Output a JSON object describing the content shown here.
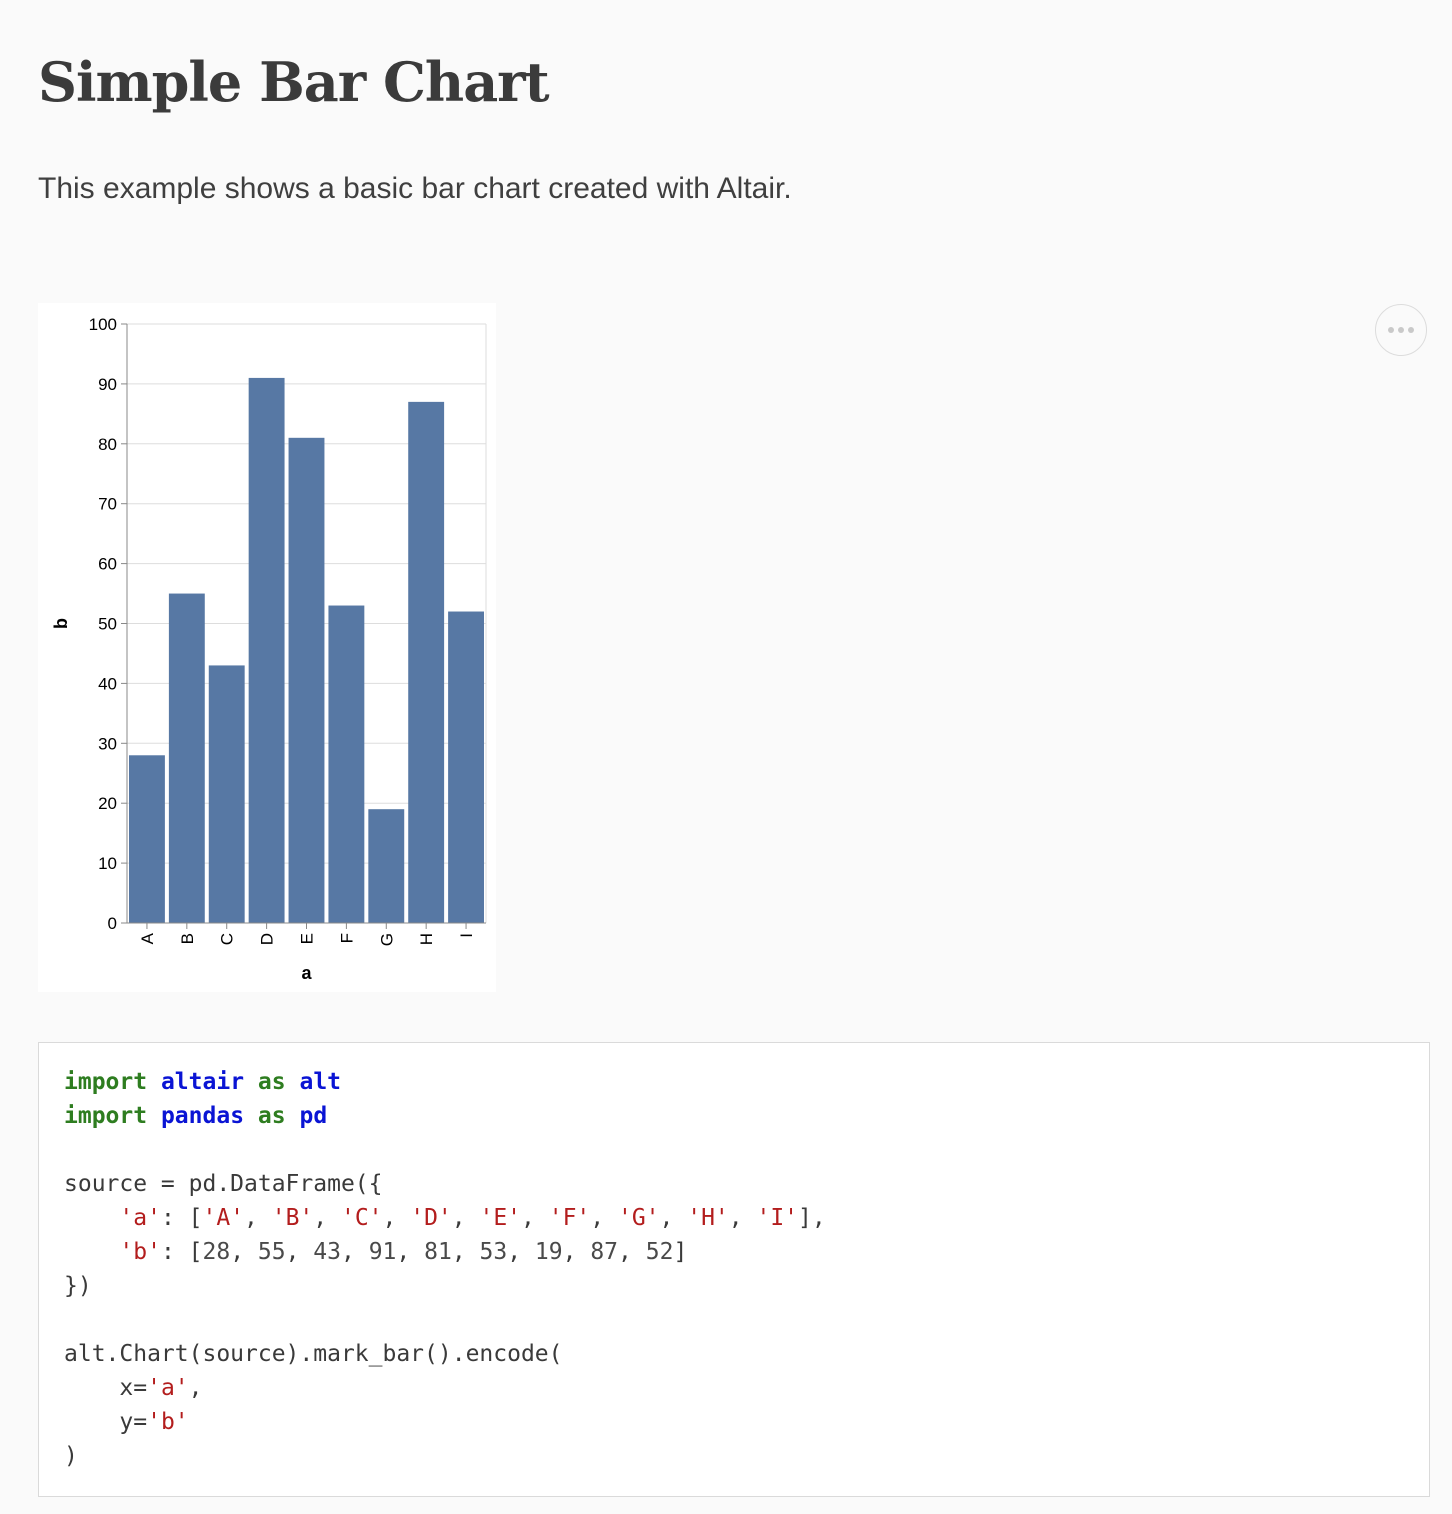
{
  "page": {
    "title": "Simple Bar Chart",
    "description": "This example shows a basic bar chart created with Altair."
  },
  "actions": {
    "more_button_icon": "more-horizontal-icon"
  },
  "chart_data": {
    "type": "bar",
    "categories": [
      "A",
      "B",
      "C",
      "D",
      "E",
      "F",
      "G",
      "H",
      "I"
    ],
    "values": [
      28,
      55,
      43,
      91,
      81,
      53,
      19,
      87,
      52
    ],
    "xlabel": "a",
    "ylabel": "b",
    "ylim": [
      0,
      100
    ],
    "yticks": [
      0,
      10,
      20,
      30,
      40,
      50,
      60,
      70,
      80,
      90,
      100
    ],
    "grid": true,
    "bar_color": "#5778a4"
  },
  "code": {
    "language": "python",
    "lines": [
      [
        {
          "t": "import",
          "c": "kw"
        },
        {
          "t": " ",
          "c": "plain"
        },
        {
          "t": "altair",
          "c": "mod"
        },
        {
          "t": " ",
          "c": "plain"
        },
        {
          "t": "as",
          "c": "kw"
        },
        {
          "t": " ",
          "c": "plain"
        },
        {
          "t": "alt",
          "c": "mod"
        }
      ],
      [
        {
          "t": "import",
          "c": "kw"
        },
        {
          "t": " ",
          "c": "plain"
        },
        {
          "t": "pandas",
          "c": "mod"
        },
        {
          "t": " ",
          "c": "plain"
        },
        {
          "t": "as",
          "c": "kw"
        },
        {
          "t": " ",
          "c": "plain"
        },
        {
          "t": "pd",
          "c": "mod"
        }
      ],
      [],
      [
        {
          "t": "source = pd.DataFrame({",
          "c": "plain"
        }
      ],
      [
        {
          "t": "    ",
          "c": "plain"
        },
        {
          "t": "'a'",
          "c": "str"
        },
        {
          "t": ": [",
          "c": "plain"
        },
        {
          "t": "'A'",
          "c": "str"
        },
        {
          "t": ", ",
          "c": "plain"
        },
        {
          "t": "'B'",
          "c": "str"
        },
        {
          "t": ", ",
          "c": "plain"
        },
        {
          "t": "'C'",
          "c": "str"
        },
        {
          "t": ", ",
          "c": "plain"
        },
        {
          "t": "'D'",
          "c": "str"
        },
        {
          "t": ", ",
          "c": "plain"
        },
        {
          "t": "'E'",
          "c": "str"
        },
        {
          "t": ", ",
          "c": "plain"
        },
        {
          "t": "'F'",
          "c": "str"
        },
        {
          "t": ", ",
          "c": "plain"
        },
        {
          "t": "'G'",
          "c": "str"
        },
        {
          "t": ", ",
          "c": "plain"
        },
        {
          "t": "'H'",
          "c": "str"
        },
        {
          "t": ", ",
          "c": "plain"
        },
        {
          "t": "'I'",
          "c": "str"
        },
        {
          "t": "],",
          "c": "plain"
        }
      ],
      [
        {
          "t": "    ",
          "c": "plain"
        },
        {
          "t": "'b'",
          "c": "str"
        },
        {
          "t": ": [",
          "c": "plain"
        },
        {
          "t": "28",
          "c": "num"
        },
        {
          "t": ", ",
          "c": "plain"
        },
        {
          "t": "55",
          "c": "num"
        },
        {
          "t": ", ",
          "c": "plain"
        },
        {
          "t": "43",
          "c": "num"
        },
        {
          "t": ", ",
          "c": "plain"
        },
        {
          "t": "91",
          "c": "num"
        },
        {
          "t": ", ",
          "c": "plain"
        },
        {
          "t": "81",
          "c": "num"
        },
        {
          "t": ", ",
          "c": "plain"
        },
        {
          "t": "53",
          "c": "num"
        },
        {
          "t": ", ",
          "c": "plain"
        },
        {
          "t": "19",
          "c": "num"
        },
        {
          "t": ", ",
          "c": "plain"
        },
        {
          "t": "87",
          "c": "num"
        },
        {
          "t": ", ",
          "c": "plain"
        },
        {
          "t": "52",
          "c": "num"
        },
        {
          "t": "]",
          "c": "plain"
        }
      ],
      [
        {
          "t": "})",
          "c": "plain"
        }
      ],
      [],
      [
        {
          "t": "alt.Chart(source).mark_bar().encode(",
          "c": "plain"
        }
      ],
      [
        {
          "t": "    x=",
          "c": "plain"
        },
        {
          "t": "'a'",
          "c": "str"
        },
        {
          "t": ",",
          "c": "plain"
        }
      ],
      [
        {
          "t": "    y=",
          "c": "plain"
        },
        {
          "t": "'b'",
          "c": "str"
        }
      ],
      [
        {
          "t": ")",
          "c": "plain"
        }
      ]
    ]
  }
}
